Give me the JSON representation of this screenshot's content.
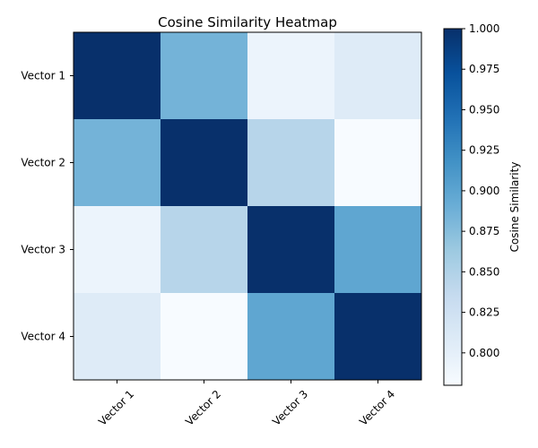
{
  "chart_data": {
    "type": "heatmap",
    "title": "Cosine Similarity Heatmap",
    "x_tick_labels": [
      "Vector 1",
      "Vector 2",
      "Vector 3",
      "Vector 4"
    ],
    "y_tick_labels": [
      "Vector 1",
      "Vector 2",
      "Vector 3",
      "Vector 4"
    ],
    "matrix": [
      [
        1.0,
        0.885,
        0.792,
        0.808
      ],
      [
        0.885,
        1.0,
        0.845,
        0.78
      ],
      [
        0.792,
        0.845,
        1.0,
        0.898
      ],
      [
        0.808,
        0.78,
        0.898,
        1.0
      ]
    ],
    "colormap": "Blues",
    "colorbar": {
      "label": "Cosine Similarity",
      "vmin": 0.78,
      "vmax": 1.0,
      "ticks": [
        "0.800",
        "0.825",
        "0.850",
        "0.875",
        "0.900",
        "0.925",
        "0.950",
        "0.975",
        "1.000"
      ]
    },
    "grid": false,
    "x_tick_rotation_deg": 45
  }
}
